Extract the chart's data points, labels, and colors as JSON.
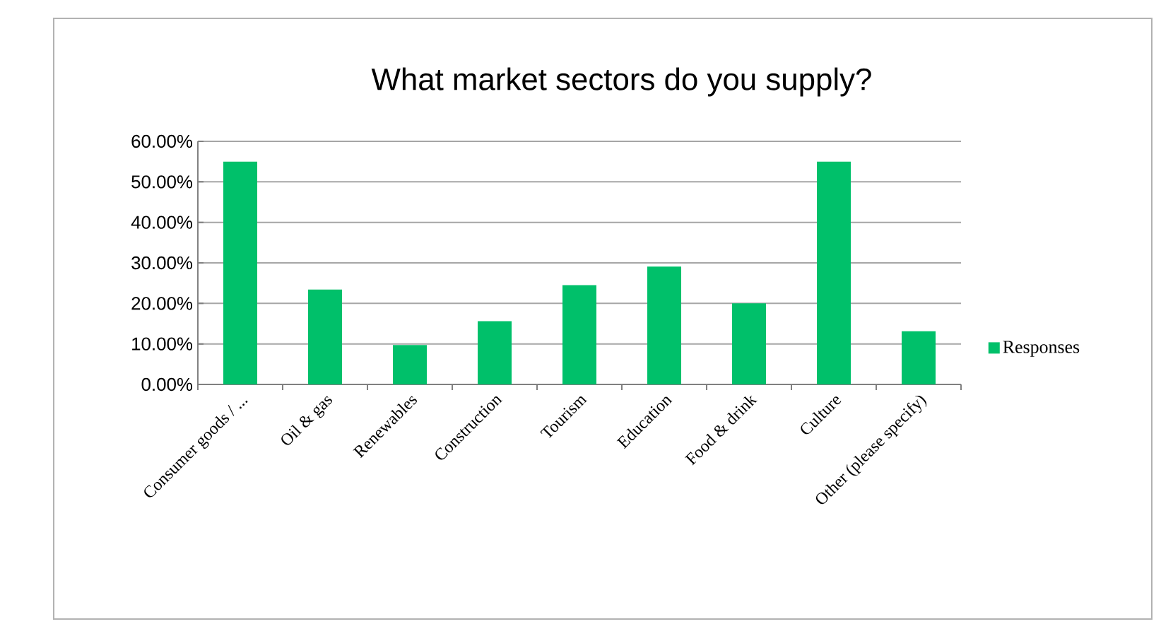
{
  "chart_data": {
    "type": "bar",
    "title": "What market sectors do you supply?",
    "categories": [
      "Consumer goods / ...",
      "Oil & gas",
      "Renewables",
      "Construction",
      "Tourism",
      "Education",
      "Food & drink",
      "Culture",
      "Other (please specify)"
    ],
    "series": [
      {
        "name": "Responses",
        "color": "#00c06a",
        "values": [
          55.0,
          23.4,
          9.7,
          15.6,
          24.5,
          29.1,
          20.0,
          55.0,
          13.1
        ]
      }
    ],
    "ylim": [
      0,
      60
    ],
    "yticks": [
      {
        "value": 0,
        "label": "0.00%"
      },
      {
        "value": 10,
        "label": "10.00%"
      },
      {
        "value": 20,
        "label": "20.00%"
      },
      {
        "value": 30,
        "label": "30.00%"
      },
      {
        "value": 40,
        "label": "40.00%"
      },
      {
        "value": 50,
        "label": "50.00%"
      },
      {
        "value": 60,
        "label": "60.00%"
      }
    ],
    "grid": "y",
    "legend": "right"
  }
}
